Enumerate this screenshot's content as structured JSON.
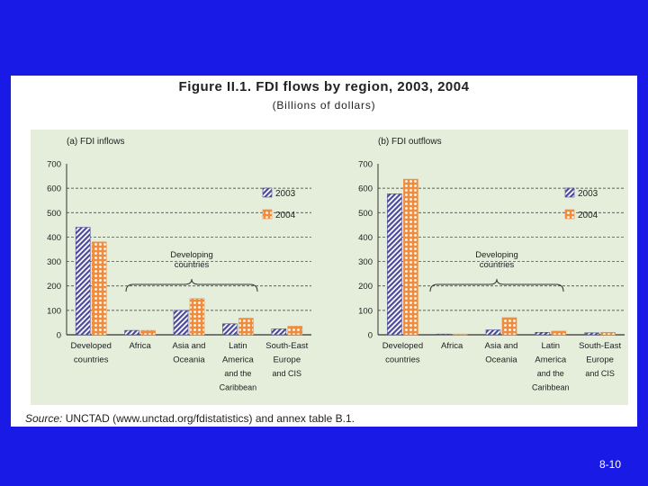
{
  "figure": {
    "title": "Figure II.1. FDI flows by region, 2003, 2004",
    "subtitle": "(Billions of dollars)"
  },
  "source": {
    "label": "Source:",
    "text": "UNCTAD (www.unctad.org/fdistatistics) and annex table B.1."
  },
  "slide_number": "8-10",
  "colors": {
    "background": "#1a1ae6",
    "panel": "#e4eedb",
    "series_2003": "#4a4a9a",
    "series_2004": "#f08c3c"
  },
  "chart_data": [
    {
      "type": "bar",
      "title": "(a) FDI inflows",
      "categories": [
        [
          "Developed",
          "countries"
        ],
        [
          "Africa"
        ],
        [
          "Asia and",
          "Oceania"
        ],
        [
          "Latin",
          "America",
          "and the",
          "Caribbean"
        ],
        [
          "South-East",
          "Europe",
          "and CIS"
        ]
      ],
      "series": [
        {
          "name": "2003",
          "values": [
            440,
            18,
            100,
            45,
            24
          ]
        },
        {
          "name": "2004",
          "values": [
            380,
            18,
            148,
            68,
            35
          ]
        }
      ],
      "ylim": [
        0,
        700
      ],
      "yticks": [
        0,
        100,
        200,
        300,
        400,
        500,
        600,
        700
      ],
      "annotation": [
        "Developing",
        "countries"
      ],
      "legend": "top-right",
      "grid": true
    },
    {
      "type": "bar",
      "title": "(b) FDI outflows",
      "categories": [
        [
          "Developed",
          "countries"
        ],
        [
          "Africa"
        ],
        [
          "Asia and",
          "Oceania"
        ],
        [
          "Latin",
          "America",
          "and the",
          "Caribbean"
        ],
        [
          "South-East",
          "Europe",
          "and CIS"
        ]
      ],
      "series": [
        {
          "name": "2003",
          "values": [
            577,
            1,
            20,
            10,
            8
          ]
        },
        {
          "name": "2004",
          "values": [
            637,
            2,
            70,
            15,
            10
          ]
        }
      ],
      "ylim": [
        0,
        700
      ],
      "yticks": [
        0,
        100,
        200,
        300,
        400,
        500,
        600,
        700
      ],
      "annotation": [
        "Developing",
        "countries"
      ],
      "legend": "top-right",
      "grid": true
    }
  ]
}
